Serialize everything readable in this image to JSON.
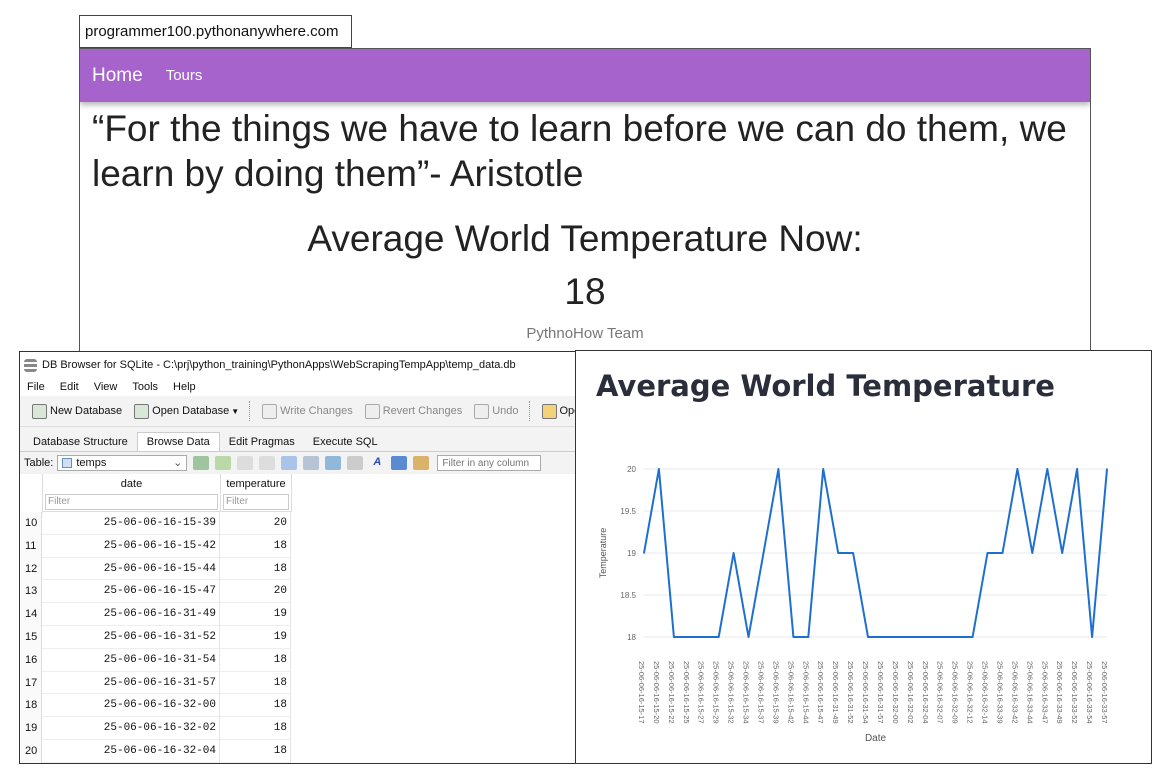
{
  "website": {
    "url": "programmer100.pythonanywhere.com",
    "nav": {
      "home": "Home",
      "tours": "Tours"
    },
    "quote": "“For the things we have to learn before we can do them, we learn by doing them”- Aristotle",
    "avg_title": "Average World Temperature Now:",
    "avg_value": "18",
    "team": "PythnoHow Team"
  },
  "db_browser": {
    "window_title": "DB Browser for SQLite - C:\\prj\\python_training\\PythonApps\\WebScrapingTempApp\\temp_data.db",
    "menu": [
      "File",
      "Edit",
      "View",
      "Tools",
      "Help"
    ],
    "toolbar": {
      "new_database": "New Database",
      "open_database": "Open Database",
      "write_changes": "Write Changes",
      "revert_changes": "Revert Changes",
      "undo": "Undo",
      "open_project": "Open Project"
    },
    "tabs": [
      "Database Structure",
      "Browse Data",
      "Edit Pragmas",
      "Execute SQL"
    ],
    "active_tab": "Browse Data",
    "table_label": "Table:",
    "table_selected": "temps",
    "filter_any_placeholder": "Filter in any column",
    "columns": {
      "date": "date",
      "temperature": "temperature"
    },
    "filter_placeholder": "Filter",
    "rows": [
      {
        "n": "10",
        "date": "25-06-06-16-15-39",
        "temp": "20"
      },
      {
        "n": "11",
        "date": "25-06-06-16-15-42",
        "temp": "18"
      },
      {
        "n": "12",
        "date": "25-06-06-16-15-44",
        "temp": "18"
      },
      {
        "n": "13",
        "date": "25-06-06-16-15-47",
        "temp": "20"
      },
      {
        "n": "14",
        "date": "25-06-06-16-31-49",
        "temp": "19"
      },
      {
        "n": "15",
        "date": "25-06-06-16-31-52",
        "temp": "19"
      },
      {
        "n": "16",
        "date": "25-06-06-16-31-54",
        "temp": "18"
      },
      {
        "n": "17",
        "date": "25-06-06-16-31-57",
        "temp": "18"
      },
      {
        "n": "18",
        "date": "25-06-06-16-32-00",
        "temp": "18"
      },
      {
        "n": "19",
        "date": "25-06-06-16-32-02",
        "temp": "18"
      },
      {
        "n": "20",
        "date": "25-06-06-16-32-04",
        "temp": "18"
      }
    ]
  },
  "chart_panel_title": "Average World Temperature",
  "chart_data": {
    "type": "line",
    "title": "Average World Temperature",
    "xlabel": "Date",
    "ylabel": "Temperature",
    "ylim": [
      18,
      20
    ],
    "yticks": [
      "18",
      "18.5",
      "19",
      "19.5",
      "20"
    ],
    "grid": "on",
    "line_color": "#1f6fd1",
    "x": [
      "25-06-06-16-15-17",
      "25-06-06-16-15-20",
      "25-06-06-16-15-22",
      "25-06-06-16-15-25",
      "25-06-06-16-15-27",
      "25-06-06-16-15-29",
      "25-06-06-16-15-32",
      "25-06-06-16-15-34",
      "25-06-06-16-15-37",
      "25-06-06-16-15-39",
      "25-06-06-16-15-42",
      "25-06-06-16-15-44",
      "25-06-06-16-15-47",
      "25-06-06-16-31-49",
      "25-06-06-16-31-52",
      "25-06-06-16-31-54",
      "25-06-06-16-31-57",
      "25-06-06-16-32-00",
      "25-06-06-16-32-02",
      "25-06-06-16-32-04",
      "25-06-06-16-32-07",
      "25-06-06-16-32-09",
      "25-06-06-16-32-12",
      "25-06-06-16-32-14",
      "25-06-06-16-33-39",
      "25-06-06-16-33-42",
      "25-06-06-16-33-44",
      "25-06-06-16-33-47",
      "25-06-06-16-33-49",
      "25-06-06-16-33-52",
      "25-06-06-16-33-54",
      "25-06-06-16-33-57"
    ],
    "values": [
      19,
      20,
      18,
      18,
      18,
      18,
      19,
      18,
      19,
      20,
      18,
      18,
      20,
      19,
      19,
      18,
      18,
      18,
      18,
      18,
      18,
      18,
      18,
      19,
      19,
      20,
      19,
      20,
      19,
      20,
      18,
      20
    ]
  }
}
